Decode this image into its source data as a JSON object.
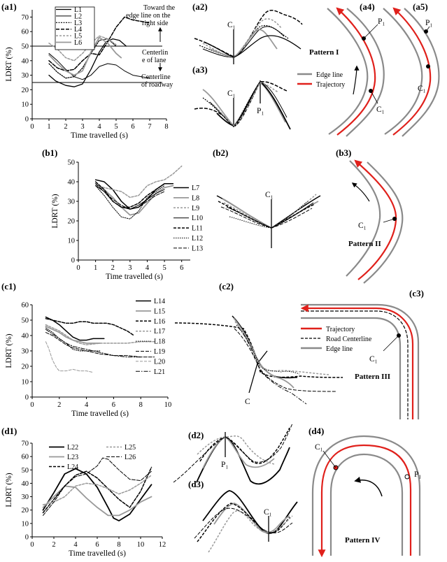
{
  "labels": {
    "ylabel": "LDRT (%)",
    "xlabel": "Time travelled (s)",
    "c1": "C₁",
    "p1": "P₁",
    "ci": "C"
  },
  "panels": {
    "a1": "(a1)",
    "a2": "(a2)",
    "a3": "(a3)",
    "a4": "(a4)",
    "a5": "(a5)",
    "b1": "(b1)",
    "b2": "(b2)",
    "b3": "(b3)",
    "c1": "(c1)",
    "c2": "(c2)",
    "c3": "(c3)",
    "d1": "(d1)",
    "d2": "(d2)",
    "d3": "(d3)",
    "d4": "(d4)"
  },
  "patterns": {
    "p1": "Pattern I",
    "p2": "Pattern II",
    "p3": "Pattern III",
    "p4": "Pattern IV"
  },
  "a1_annotations": {
    "edge1": "Toward the",
    "edge2": "edge line on the",
    "edge3": "right side",
    "lane1": "Centerlin",
    "lane2": "e of lane",
    "road1": "Centerline",
    "road2": "of roadway"
  },
  "legend_a": {
    "edge": "Edge line",
    "traj": "Trajectory"
  },
  "legend_c3": {
    "traj": "Trajectory",
    "center": "Road Centerline",
    "edge": "Edge line"
  },
  "colors": {
    "trajectory": "#e0201b",
    "edge": "#8a8a8a",
    "gray": "#8c8c8c",
    "lightgray": "#a9a9a9"
  },
  "chart_data": [
    {
      "id": "a1",
      "type": "line",
      "xlabel": "Time travelled (s)",
      "ylabel": "LDRT (%)",
      "xlim": [
        0,
        8
      ],
      "ylim": [
        0,
        75
      ],
      "xticks": [
        0,
        1,
        2,
        3,
        4,
        5,
        6,
        7,
        8
      ],
      "yticks": [
        0,
        10,
        20,
        30,
        40,
        50,
        60,
        70
      ],
      "hlines": [
        50,
        25
      ],
      "series": [
        {
          "name": "L1",
          "color": "#000",
          "width": 1.3,
          "dash": "",
          "x": [
            1.0,
            1.4,
            2.0,
            2.5,
            3.0,
            3.5,
            4.0,
            4.4,
            4.8,
            5.2,
            5.6
          ],
          "y": [
            30,
            26,
            23,
            22,
            24,
            34,
            46,
            53,
            55,
            54,
            50
          ]
        },
        {
          "name": "L2",
          "color": "#000",
          "width": 1,
          "dash": "",
          "x": [
            1.0,
            1.5,
            2.0,
            2.5,
            3.0,
            3.5,
            4.0,
            4.5,
            5.0,
            5.5,
            6.0,
            6.5,
            7.0
          ],
          "y": [
            45,
            40,
            34,
            29,
            27,
            30,
            36,
            38,
            37,
            33,
            30,
            29,
            28
          ]
        },
        {
          "name": "L3",
          "color": "#000",
          "width": 1.2,
          "dash": "2,1.5",
          "x": [
            1.0,
            1.5,
            2.0,
            2.5,
            3.0,
            3.5,
            4.0,
            4.5,
            5.0
          ],
          "y": [
            38,
            32,
            28,
            29,
            35,
            45,
            54,
            55,
            50
          ]
        },
        {
          "name": "L4",
          "color": "#000",
          "width": 1.5,
          "dash": "5,2",
          "x": [
            1.0,
            1.5,
            2.0,
            2.5,
            3.0,
            3.5,
            4.0,
            4.5,
            5.0,
            5.5,
            6.0,
            6.5,
            7.0
          ],
          "y": [
            40,
            35,
            33,
            34,
            40,
            45,
            44,
            53,
            63,
            70,
            68,
            67,
            66
          ]
        },
        {
          "name": "L5",
          "color": "#999",
          "width": 1.5,
          "dash": "3,2",
          "x": [
            1.0,
            1.5,
            2.0,
            2.5,
            3.0,
            3.5,
            4.0,
            4.5,
            5.0
          ],
          "y": [
            52,
            48,
            42,
            40,
            45,
            52,
            57,
            55,
            51
          ]
        },
        {
          "name": "L6",
          "color": "#999",
          "width": 1.8,
          "dash": "",
          "x": [
            1.0,
            1.5,
            2.0,
            2.5,
            3.0,
            3.5,
            4.0,
            4.5,
            5.0,
            5.3
          ],
          "y": [
            44,
            38,
            33,
            30,
            33,
            46,
            56,
            52,
            45,
            42
          ]
        }
      ]
    },
    {
      "id": "b1",
      "type": "line",
      "xlabel": "Time travelled (s)",
      "ylabel": "LDRT (%)",
      "xlim": [
        0,
        6.5
      ],
      "ylim": [
        0,
        50
      ],
      "xticks": [
        0,
        1,
        2,
        3,
        4,
        5,
        6
      ],
      "yticks": [
        0,
        10,
        20,
        30,
        40,
        50
      ],
      "series": [
        {
          "name": "L7",
          "color": "#000",
          "width": 1.5,
          "dash": "",
          "x": [
            1,
            1.5,
            2,
            2.5,
            3,
            3.5,
            4,
            4.5,
            5,
            5.5
          ],
          "y": [
            41,
            40,
            36,
            30,
            26,
            27,
            31,
            36,
            39,
            39
          ]
        },
        {
          "name": "L8",
          "color": "#999",
          "width": 1.8,
          "dash": "",
          "x": [
            1,
            1.5,
            2,
            2.5,
            3,
            3.5,
            4,
            4.5,
            5,
            5.5
          ],
          "y": [
            39,
            36,
            32,
            27,
            23,
            24,
            29,
            34,
            37,
            38
          ]
        },
        {
          "name": "L9",
          "color": "#999",
          "width": 1.5,
          "dash": "3,2",
          "x": [
            1,
            1.5,
            2,
            2.5,
            3,
            3.5,
            4,
            4.5,
            5,
            5.5,
            6
          ],
          "y": [
            38,
            37,
            36,
            35,
            32,
            33,
            38,
            40,
            41,
            44,
            48
          ]
        },
        {
          "name": "L10",
          "color": "#000",
          "width": 1,
          "dash": "",
          "x": [
            1,
            1.5,
            2,
            2.5,
            3,
            3.5,
            4,
            4.5,
            5
          ],
          "y": [
            38,
            35,
            30,
            27,
            26,
            28,
            31,
            34,
            36
          ]
        },
        {
          "name": "L11",
          "color": "#000",
          "width": 1.5,
          "dash": "4,2",
          "x": [
            1,
            1.5,
            2,
            2.5,
            3,
            3.5,
            4,
            4.5,
            5
          ],
          "y": [
            40,
            36,
            30,
            27,
            27,
            29,
            33,
            36,
            39
          ]
        },
        {
          "name": "L12",
          "color": "#000",
          "width": 1,
          "dash": "1.5,1.5",
          "x": [
            1,
            1.5,
            2,
            2.5,
            3,
            3.5,
            4,
            4.5,
            5
          ],
          "y": [
            38,
            33,
            27,
            22,
            21,
            25,
            32,
            35,
            38
          ]
        },
        {
          "name": "L13",
          "color": "#000",
          "width": 1,
          "dash": "5,2",
          "x": [
            1,
            1.5,
            2,
            2.5,
            3,
            3.5,
            4,
            4.5,
            5
          ],
          "y": [
            39,
            35,
            31,
            28,
            26,
            27,
            30,
            33,
            35
          ]
        }
      ]
    },
    {
      "id": "c1",
      "type": "line",
      "xlabel": "Time travelled (s)",
      "ylabel": "LDRT (%)",
      "xlim": [
        0,
        10
      ],
      "ylim": [
        0,
        60
      ],
      "xticks": [
        0,
        2,
        4,
        6,
        8,
        10
      ],
      "yticks": [
        0,
        10,
        20,
        30,
        40,
        50,
        60
      ],
      "series": [
        {
          "name": "L14",
          "color": "#000",
          "width": 1.5,
          "dash": "",
          "x": [
            1,
            1.5,
            2,
            2.5,
            3,
            3.5,
            4,
            4.5,
            5,
            5.3
          ],
          "y": [
            52,
            50,
            47,
            43,
            39,
            37,
            37,
            38,
            38,
            38
          ]
        },
        {
          "name": "L15",
          "color": "#999",
          "width": 1.8,
          "dash": "",
          "x": [
            1,
            1.5,
            2,
            2.5,
            3,
            3.5,
            4,
            4.5,
            5
          ],
          "y": [
            46,
            44,
            42,
            39,
            37,
            36,
            35,
            35,
            35
          ]
        },
        {
          "name": "L16",
          "color": "#000",
          "width": 1.5,
          "dash": "4,2",
          "x": [
            1,
            1.5,
            2,
            2.5,
            3,
            3.5,
            4,
            4.5,
            5,
            5.5,
            6,
            6.5,
            7,
            7.5
          ],
          "y": [
            51,
            50,
            49,
            48,
            48,
            49,
            49,
            48,
            48,
            48,
            47,
            45,
            43,
            40
          ]
        },
        {
          "name": "L17",
          "color": "#999",
          "width": 1.5,
          "dash": "3,2",
          "x": [
            1,
            1.5,
            2,
            2.5,
            3,
            3.5,
            4,
            5,
            6,
            7,
            8,
            9
          ],
          "y": [
            47,
            45,
            43,
            40,
            37,
            35,
            34,
            35,
            35,
            35,
            36,
            36
          ]
        },
        {
          "name": "L18",
          "color": "#000",
          "width": 1,
          "dash": "1.5,1.5",
          "x": [
            1,
            1.5,
            2,
            2.5,
            3,
            3.5,
            4,
            4.5,
            5
          ],
          "y": [
            45,
            42,
            38,
            35,
            31,
            30,
            30,
            30,
            30
          ]
        },
        {
          "name": "L19",
          "color": "#000",
          "width": 1,
          "dash": "5,2",
          "x": [
            1,
            1.5,
            2,
            2.5,
            3,
            3.5,
            4,
            5,
            6,
            7,
            8,
            9
          ],
          "y": [
            42,
            40,
            37,
            34,
            32,
            31,
            30,
            28,
            27,
            27,
            26,
            26
          ]
        },
        {
          "name": "L20",
          "color": "#999",
          "width": 1,
          "dash": "4,2",
          "x": [
            1,
            1.2,
            1.5,
            1.8,
            2,
            2.5,
            3,
            3.5,
            4,
            4.5
          ],
          "y": [
            36,
            32,
            24,
            19,
            17,
            17,
            18,
            17,
            17,
            16
          ]
        },
        {
          "name": "L21",
          "color": "#000",
          "width": 1,
          "dash": "6,2,1.5,2",
          "x": [
            1,
            1.5,
            2,
            2.5,
            3,
            3.5,
            4,
            5,
            6,
            7,
            8
          ],
          "y": [
            44,
            41,
            38,
            35,
            33,
            32,
            31,
            29,
            27,
            26,
            26
          ]
        }
      ]
    },
    {
      "id": "d1",
      "type": "line",
      "xlabel": "Time travelled (s)",
      "ylabel": "LDRT (%)",
      "xlim": [
        0,
        12
      ],
      "ylim": [
        0,
        70
      ],
      "xticks": [
        0,
        2,
        4,
        6,
        8,
        10,
        12
      ],
      "yticks": [
        0,
        10,
        20,
        30,
        40,
        50,
        60,
        70
      ],
      "series": [
        {
          "name": "L22",
          "color": "#000",
          "width": 1.8,
          "dash": "",
          "x": [
            1,
            2,
            3,
            4,
            5,
            6,
            7,
            7.5,
            8,
            9,
            10,
            11
          ],
          "y": [
            20,
            33,
            47,
            51,
            47,
            37,
            22,
            14,
            12,
            17,
            28,
            39
          ]
        },
        {
          "name": "L23",
          "color": "#999",
          "width": 1.8,
          "dash": "",
          "x": [
            1,
            2,
            3,
            4,
            5,
            6,
            7,
            8,
            9,
            10,
            11
          ],
          "y": [
            22,
            30,
            38,
            37,
            29,
            22,
            16,
            16,
            20,
            26,
            30
          ]
        },
        {
          "name": "L24",
          "color": "#000",
          "width": 1.5,
          "dash": "4,2",
          "x": [
            1,
            2,
            3,
            4,
            5,
            6,
            7,
            8,
            9,
            10,
            11
          ],
          "y": [
            18,
            28,
            38,
            46,
            49,
            44,
            36,
            28,
            22,
            34,
            52
          ]
        },
        {
          "name": "L25",
          "color": "#999",
          "width": 1.5,
          "dash": "3,2",
          "x": [
            1,
            2,
            3,
            4,
            5,
            6,
            7,
            8,
            9,
            10,
            11
          ],
          "y": [
            24,
            26,
            30,
            38,
            40,
            39,
            36,
            32,
            35,
            40,
            46
          ]
        },
        {
          "name": "L26",
          "color": "#000",
          "width": 1,
          "dash": "5,2",
          "x": [
            1,
            2,
            3,
            4,
            5,
            6,
            6.5,
            7,
            8,
            9,
            10,
            11
          ],
          "y": [
            16,
            26,
            38,
            45,
            47,
            53,
            59,
            58,
            50,
            43,
            42,
            49
          ]
        }
      ]
    }
  ]
}
